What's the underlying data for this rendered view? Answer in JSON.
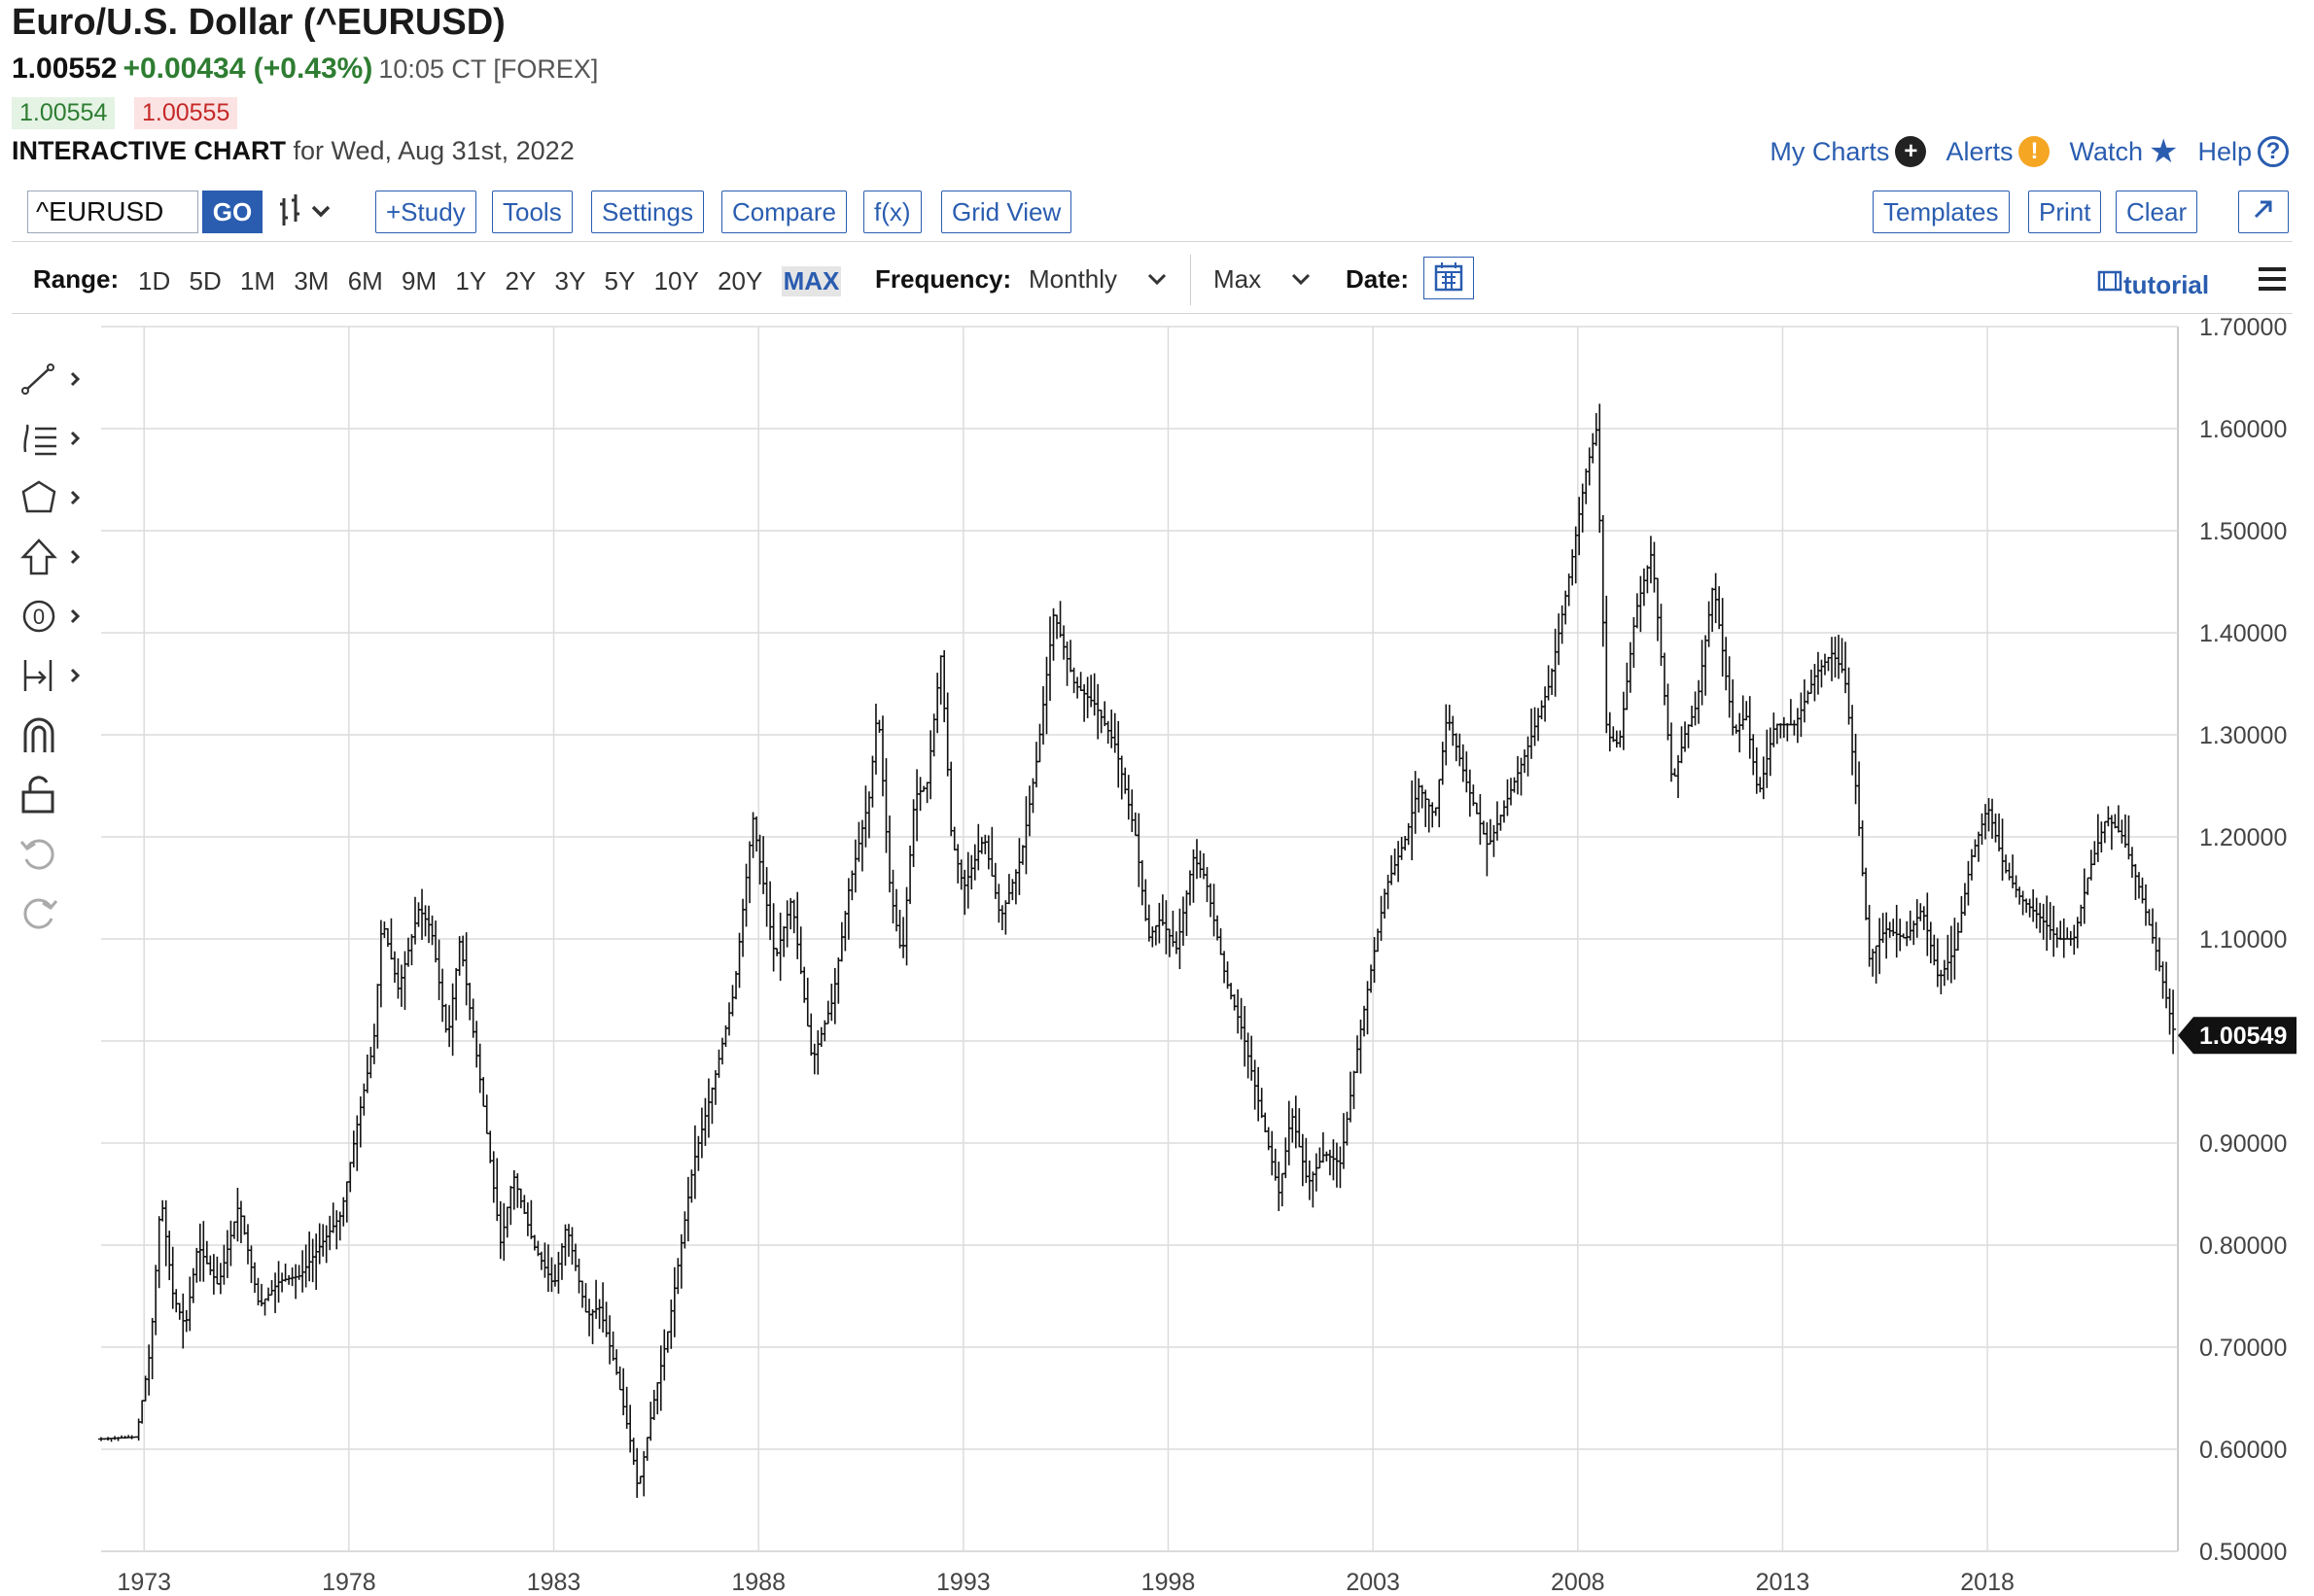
{
  "header": {
    "title": "Euro/U.S. Dollar (^EURUSD)",
    "last": "1.00552",
    "change": "+0.00434 (+0.43%)",
    "time": "10:05 CT [FOREX]",
    "bid": "1.00554",
    "ask": "1.00555",
    "chart_label": "INTERACTIVE CHART",
    "chart_date": "for Wed, Aug 31st, 2022"
  },
  "toplinks": [
    {
      "label": "My Charts",
      "icon": "plus-icon",
      "color": "#222222"
    },
    {
      "label": "Alerts",
      "icon": "exclamation-icon",
      "color": "#f5a623"
    },
    {
      "label": "Watch",
      "icon": "star-icon",
      "color": "#2a5db0"
    },
    {
      "label": "Help",
      "icon": "question-icon",
      "color": "#2a5db0"
    }
  ],
  "toolbar": {
    "symbol": "^EURUSD",
    "go_label": "GO",
    "bar_type_icon": "ohlc-bars-icon",
    "left_buttons": [
      "+Study",
      "Tools",
      "Settings",
      "Compare",
      "f(x)",
      "Grid View"
    ],
    "right_buttons": [
      "Templates",
      "Print",
      "Clear"
    ],
    "expand_icon": "expand-arrow-icon"
  },
  "rangebar": {
    "range_label": "Range:",
    "ranges": [
      "1D",
      "5D",
      "1M",
      "3M",
      "6M",
      "9M",
      "1Y",
      "2Y",
      "3Y",
      "5Y",
      "10Y",
      "20Y",
      "MAX"
    ],
    "active_range": "MAX",
    "frequency_label": "Frequency:",
    "frequency_value": "Monthly",
    "period_value": "Max",
    "date_label": "Date:",
    "tutorial_label": "tutorial"
  },
  "left_tools": [
    "trendline-icon",
    "fib-icon",
    "shapes-icon",
    "arrow-up-icon",
    "circle-zero-icon",
    "measure-icon",
    "magnet-icon",
    "lock-icon",
    "undo-icon",
    "redo-icon"
  ],
  "colors": {
    "accent": "#2a5db0",
    "up": "#2e7d32",
    "down": "#c62828",
    "bars": "#111111"
  },
  "chart_data": {
    "type": "ohlc",
    "frequency": "Monthly",
    "x_ticks": [
      "1973",
      "1978",
      "1983",
      "1988",
      "1993",
      "1998",
      "2003",
      "2008",
      "2013",
      "2018"
    ],
    "y_ticks": [
      "0.50000",
      "0.60000",
      "0.70000",
      "0.80000",
      "0.90000",
      "1.00000",
      "1.10000",
      "1.20000",
      "1.30000",
      "1.40000",
      "1.50000",
      "1.60000",
      "1.70000"
    ],
    "y_tick_labels_shown": [
      "0.50000",
      "0.60000",
      "0.70000",
      "0.80000",
      "0.90000",
      "",
      "1.10000",
      "1.20000",
      "1.30000",
      "1.40000",
      "1.50000",
      "1.60000",
      "1.70000"
    ],
    "ylim": [
      0.5,
      1.7
    ],
    "xlim": [
      1972.0,
      2022.7
    ],
    "last_value_label": "1.00549",
    "grid": true,
    "anchors": [
      [
        1972.0,
        0.61
      ],
      [
        1972.9,
        0.612
      ],
      [
        1973.25,
        0.7
      ],
      [
        1973.5,
        0.85
      ],
      [
        1973.8,
        0.75
      ],
      [
        1974.1,
        0.72
      ],
      [
        1974.4,
        0.8
      ],
      [
        1974.9,
        0.76
      ],
      [
        1975.4,
        0.84
      ],
      [
        1975.9,
        0.74
      ],
      [
        1976.4,
        0.765
      ],
      [
        1976.9,
        0.77
      ],
      [
        1977.4,
        0.8
      ],
      [
        1977.9,
        0.83
      ],
      [
        1978.3,
        0.92
      ],
      [
        1978.7,
        1.0
      ],
      [
        1978.9,
        1.12
      ],
      [
        1979.3,
        1.05
      ],
      [
        1979.8,
        1.13
      ],
      [
        1980.1,
        1.11
      ],
      [
        1980.5,
        1.0
      ],
      [
        1980.8,
        1.1
      ],
      [
        1981.3,
        0.96
      ],
      [
        1981.8,
        0.8
      ],
      [
        1982.1,
        0.87
      ],
      [
        1982.6,
        0.8
      ],
      [
        1983.1,
        0.76
      ],
      [
        1983.4,
        0.82
      ],
      [
        1983.9,
        0.73
      ],
      [
        1984.2,
        0.74
      ],
      [
        1984.6,
        0.68
      ],
      [
        1985.0,
        0.6
      ],
      [
        1985.15,
        0.56
      ],
      [
        1985.5,
        0.64
      ],
      [
        1985.9,
        0.72
      ],
      [
        1986.5,
        0.88
      ],
      [
        1987.0,
        0.96
      ],
      [
        1987.5,
        1.05
      ],
      [
        1987.95,
        1.22
      ],
      [
        1988.5,
        1.08
      ],
      [
        1988.9,
        1.14
      ],
      [
        1989.4,
        0.98
      ],
      [
        1989.9,
        1.04
      ],
      [
        1990.3,
        1.15
      ],
      [
        1990.8,
        1.24
      ],
      [
        1991.0,
        1.33
      ],
      [
        1991.3,
        1.15
      ],
      [
        1991.6,
        1.08
      ],
      [
        1991.9,
        1.24
      ],
      [
        1992.2,
        1.25
      ],
      [
        1992.55,
        1.38
      ],
      [
        1992.8,
        1.2
      ],
      [
        1993.1,
        1.15
      ],
      [
        1993.6,
        1.2
      ],
      [
        1994.0,
        1.12
      ],
      [
        1994.5,
        1.18
      ],
      [
        1994.9,
        1.28
      ],
      [
        1995.3,
        1.42
      ],
      [
        1995.8,
        1.35
      ],
      [
        1996.3,
        1.33
      ],
      [
        1996.8,
        1.29
      ],
      [
        1997.3,
        1.2
      ],
      [
        1997.6,
        1.1
      ],
      [
        1997.9,
        1.12
      ],
      [
        1998.3,
        1.09
      ],
      [
        1998.7,
        1.18
      ],
      [
        1999.0,
        1.16
      ],
      [
        1999.5,
        1.06
      ],
      [
        1999.9,
        1.01
      ],
      [
        2000.3,
        0.94
      ],
      [
        2000.8,
        0.85
      ],
      [
        2001.1,
        0.93
      ],
      [
        2001.5,
        0.86
      ],
      [
        2001.9,
        0.89
      ],
      [
        2002.3,
        0.88
      ],
      [
        2002.7,
        0.99
      ],
      [
        2003.0,
        1.06
      ],
      [
        2003.4,
        1.15
      ],
      [
        2003.9,
        1.2
      ],
      [
        2004.2,
        1.25
      ],
      [
        2004.6,
        1.22
      ],
      [
        2004.9,
        1.32
      ],
      [
        2005.4,
        1.25
      ],
      [
        2005.9,
        1.19
      ],
      [
        2006.3,
        1.23
      ],
      [
        2006.8,
        1.28
      ],
      [
        2007.4,
        1.35
      ],
      [
        2007.9,
        1.46
      ],
      [
        2008.3,
        1.56
      ],
      [
        2008.55,
        1.6
      ],
      [
        2008.8,
        1.3
      ],
      [
        2009.1,
        1.29
      ],
      [
        2009.5,
        1.42
      ],
      [
        2009.9,
        1.48
      ],
      [
        2010.4,
        1.25
      ],
      [
        2010.7,
        1.3
      ],
      [
        2011.0,
        1.33
      ],
      [
        2011.4,
        1.45
      ],
      [
        2011.9,
        1.3
      ],
      [
        2012.2,
        1.32
      ],
      [
        2012.5,
        1.24
      ],
      [
        2012.9,
        1.31
      ],
      [
        2013.4,
        1.31
      ],
      [
        2013.9,
        1.36
      ],
      [
        2014.3,
        1.38
      ],
      [
        2014.6,
        1.36
      ],
      [
        2014.9,
        1.24
      ],
      [
        2015.2,
        1.08
      ],
      [
        2015.6,
        1.11
      ],
      [
        2016.1,
        1.1
      ],
      [
        2016.5,
        1.13
      ],
      [
        2016.9,
        1.06
      ],
      [
        2017.3,
        1.09
      ],
      [
        2017.7,
        1.18
      ],
      [
        2018.1,
        1.23
      ],
      [
        2018.5,
        1.17
      ],
      [
        2018.9,
        1.14
      ],
      [
        2019.4,
        1.12
      ],
      [
        2019.8,
        1.1
      ],
      [
        2020.2,
        1.1
      ],
      [
        2020.6,
        1.17
      ],
      [
        2021.0,
        1.22
      ],
      [
        2021.4,
        1.2
      ],
      [
        2021.8,
        1.15
      ],
      [
        2022.2,
        1.09
      ],
      [
        2022.66,
        1.005
      ]
    ]
  }
}
